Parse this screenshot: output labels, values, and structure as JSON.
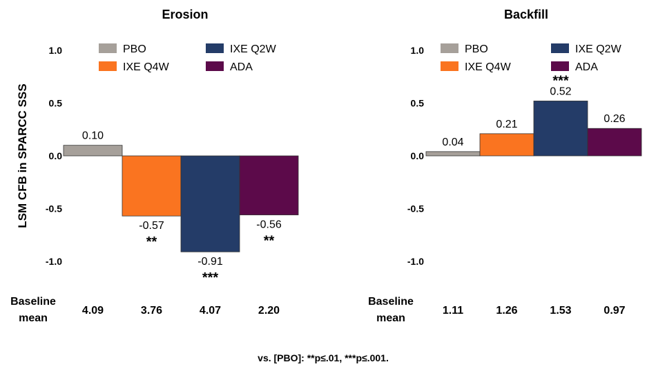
{
  "chart_data": {
    "type": "bar",
    "ylabel": "LSM CFB in SPARCC SSS",
    "ylim": [
      -1.0,
      1.0
    ],
    "yticks": [
      "1.0",
      "0.5",
      "0.0",
      "-0.5",
      "-1.0"
    ],
    "ytick_values": [
      1.0,
      0.5,
      0.0,
      -0.5,
      -1.0
    ],
    "legend": [
      {
        "name": "PBO",
        "color": "#A6A09A"
      },
      {
        "name": "IXE Q2W",
        "color": "#243C68"
      },
      {
        "name": "IXE Q4W",
        "color": "#FA7420"
      },
      {
        "name": "ADA",
        "color": "#5C0A4A"
      }
    ],
    "baseline_label": [
      "Baseline",
      "mean"
    ],
    "panels": [
      {
        "title": "Erosion",
        "categories": [
          "PBO",
          "IXE Q4W",
          "IXE Q2W",
          "ADA"
        ],
        "values": [
          0.1,
          -0.57,
          -0.91,
          -0.56
        ],
        "value_labels": [
          "0.10",
          "-0.57",
          "-0.91",
          "-0.56"
        ],
        "significance": [
          "",
          "**",
          "***",
          "**"
        ],
        "baseline_means": [
          "4.09",
          "3.76",
          "4.07",
          "2.20"
        ]
      },
      {
        "title": "Backfill",
        "categories": [
          "PBO",
          "IXE Q4W",
          "IXE Q2W",
          "ADA"
        ],
        "values": [
          0.04,
          0.21,
          0.52,
          0.26
        ],
        "value_labels": [
          "0.04",
          "0.21",
          "0.52",
          "0.26"
        ],
        "significance": [
          "",
          "",
          "***",
          ""
        ],
        "baseline_means": [
          "1.11",
          "1.26",
          "1.53",
          "0.97"
        ]
      }
    ],
    "footnote": "vs. [PBO]: **p≤.01, ***p≤.001."
  }
}
